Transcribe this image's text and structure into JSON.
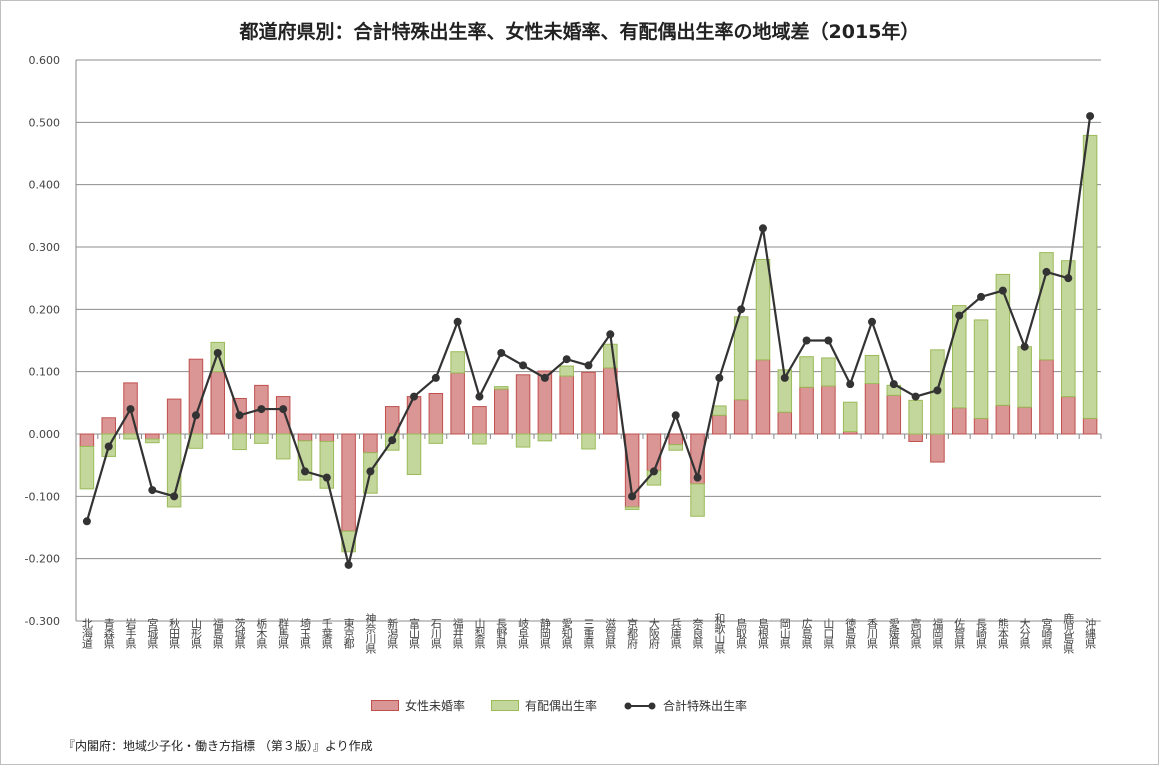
{
  "chart_data": {
    "type": "bar",
    "title": "都道府県別：合計特殊出生率、女性未婚率、有配偶出生率の地域差（2015年）",
    "ylim": [
      -0.3,
      0.6
    ],
    "yticks": [
      "0.600",
      "0.500",
      "0.400",
      "0.300",
      "0.200",
      "0.100",
      "0.000",
      "-0.100",
      "-0.200",
      "-0.300"
    ],
    "ytick_values": [
      0.6,
      0.5,
      0.4,
      0.3,
      0.2,
      0.1,
      0,
      -0.1,
      -0.2,
      -0.3
    ],
    "grid": true,
    "legend_position": "bottom",
    "categories": [
      "北海道",
      "青森県",
      "岩手県",
      "宮城県",
      "秋田県",
      "山形県",
      "福島県",
      "茨城県",
      "栃木県",
      "群馬県",
      "埼玉県",
      "千葉県",
      "東京都",
      "神奈川県",
      "新潟県",
      "富山県",
      "石川県",
      "福井県",
      "山梨県",
      "長野県",
      "岐阜県",
      "静岡県",
      "愛知県",
      "三重県",
      "滋賀県",
      "京都府",
      "大阪府",
      "兵庫県",
      "奈良県",
      "和歌山県",
      "鳥取県",
      "島根県",
      "岡山県",
      "広島県",
      "山口県",
      "徳島県",
      "香川県",
      "愛媛県",
      "高知県",
      "福岡県",
      "佐賀県",
      "長崎県",
      "熊本県",
      "大分県",
      "宮崎県",
      "鹿児島県",
      "沖縄県"
    ],
    "series": [
      {
        "name": "女性未婚率",
        "type": "stacked-bar",
        "color": "#d99694",
        "values": [
          -0.02,
          0.026,
          0.082,
          -0.008,
          0.056,
          0.12,
          0.1,
          0.057,
          0.078,
          0.06,
          -0.011,
          -0.012,
          -0.156,
          -0.03,
          0.044,
          0.06,
          0.065,
          0.098,
          0.044,
          0.072,
          0.095,
          0.101,
          0.093,
          0.099,
          0.106,
          -0.117,
          -0.059,
          -0.017,
          -0.08,
          0.03,
          0.055,
          0.119,
          0.035,
          0.075,
          0.077,
          0.004,
          0.081,
          0.062,
          -0.012,
          -0.045,
          0.042,
          0.025,
          0.046,
          0.043,
          0.119,
          0.06,
          0.025
        ]
      },
      {
        "name": "有配偶出生率",
        "type": "stacked-bar",
        "color": "#c3d69b",
        "values": [
          -0.068,
          -0.036,
          -0.008,
          -0.006,
          -0.117,
          -0.023,
          0.047,
          -0.025,
          -0.015,
          -0.04,
          -0.063,
          -0.075,
          -0.033,
          -0.065,
          -0.026,
          -0.065,
          -0.015,
          0.034,
          -0.016,
          0.004,
          -0.021,
          -0.011,
          0.016,
          -0.024,
          0.038,
          -0.004,
          -0.023,
          -0.009,
          -0.052,
          0.015,
          0.133,
          0.161,
          0.068,
          0.049,
          0.045,
          0.047,
          0.045,
          0.016,
          0.054,
          0.135,
          0.164,
          0.158,
          0.21,
          0.097,
          0.172,
          0.218,
          0.454
        ]
      },
      {
        "name": "合計特殊出生率",
        "type": "line",
        "color": "#333333",
        "values": [
          -0.14,
          -0.02,
          0.04,
          -0.09,
          -0.1,
          0.03,
          0.13,
          0.03,
          0.04,
          0.04,
          -0.06,
          -0.07,
          -0.21,
          -0.06,
          -0.01,
          0.06,
          0.09,
          0.18,
          0.06,
          0.13,
          0.11,
          0.09,
          0.12,
          0.11,
          0.16,
          -0.1,
          -0.06,
          0.03,
          -0.07,
          0.09,
          0.2,
          0.33,
          0.09,
          0.15,
          0.15,
          0.08,
          0.18,
          0.08,
          0.06,
          0.07,
          0.19,
          0.22,
          0.23,
          0.14,
          0.26,
          0.25,
          0.51
        ]
      }
    ]
  },
  "source": "『内閣府：地域少子化・働き方指標 （第３版）』より作成"
}
